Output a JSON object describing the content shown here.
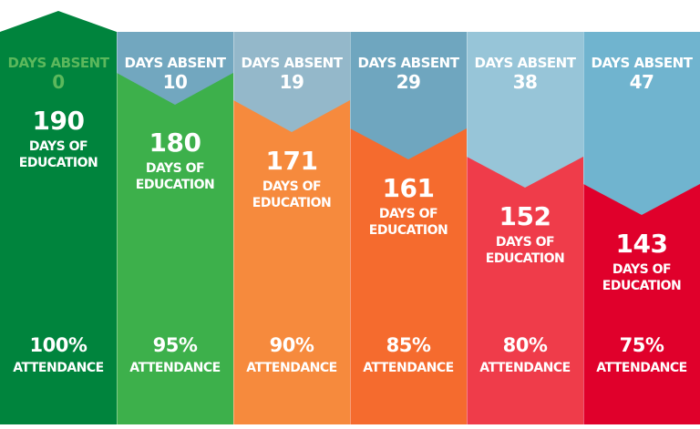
{
  "columns": [
    {
      "absent_label": "DAYS ABSENT",
      "absent": "0",
      "days": "190",
      "days_label_1": "DAYS OF",
      "days_label_2": "EDUCATION",
      "percent": "100%",
      "attendance_label": "ATTENDANCE",
      "color": "#00843d",
      "band_color": "#00843d",
      "label_color": "#5cb85c"
    },
    {
      "absent_label": "DAYS ABSENT",
      "absent": "10",
      "days": "180",
      "days_label_1": "DAYS OF",
      "days_label_2": "EDUCATION",
      "percent": "95%",
      "attendance_label": "ATTENDANCE",
      "color": "#3db04b",
      "band_color": "#72a7bf"
    },
    {
      "absent_label": "DAYS ABSENT",
      "absent": "19",
      "days": "171",
      "days_label_1": "DAYS OF",
      "days_label_2": "EDUCATION",
      "percent": "90%",
      "attendance_label": "ATTENDANCE",
      "color": "#f68a3d",
      "band_color": "#94b8ca"
    },
    {
      "absent_label": "DAYS ABSENT",
      "absent": "29",
      "days": "161",
      "days_label_1": "DAYS OF",
      "days_label_2": "EDUCATION",
      "percent": "85%",
      "attendance_label": "ATTENDANCE",
      "color": "#f56b2e",
      "band_color": "#6fa6bf"
    },
    {
      "absent_label": "DAYS ABSENT",
      "absent": "38",
      "days": "152",
      "days_label_1": "DAYS OF",
      "days_label_2": "EDUCATION",
      "percent": "80%",
      "attendance_label": "ATTENDANCE",
      "color": "#ef3c4a",
      "band_color": "#97c5d8"
    },
    {
      "absent_label": "DAYS ABSENT",
      "absent": "47",
      "days": "143",
      "days_label_1": "DAYS OF",
      "days_label_2": "EDUCATION",
      "percent": "75%",
      "attendance_label": "ATTENDANCE",
      "color": "#e0002b",
      "band_color": "#70b4cf"
    }
  ]
}
